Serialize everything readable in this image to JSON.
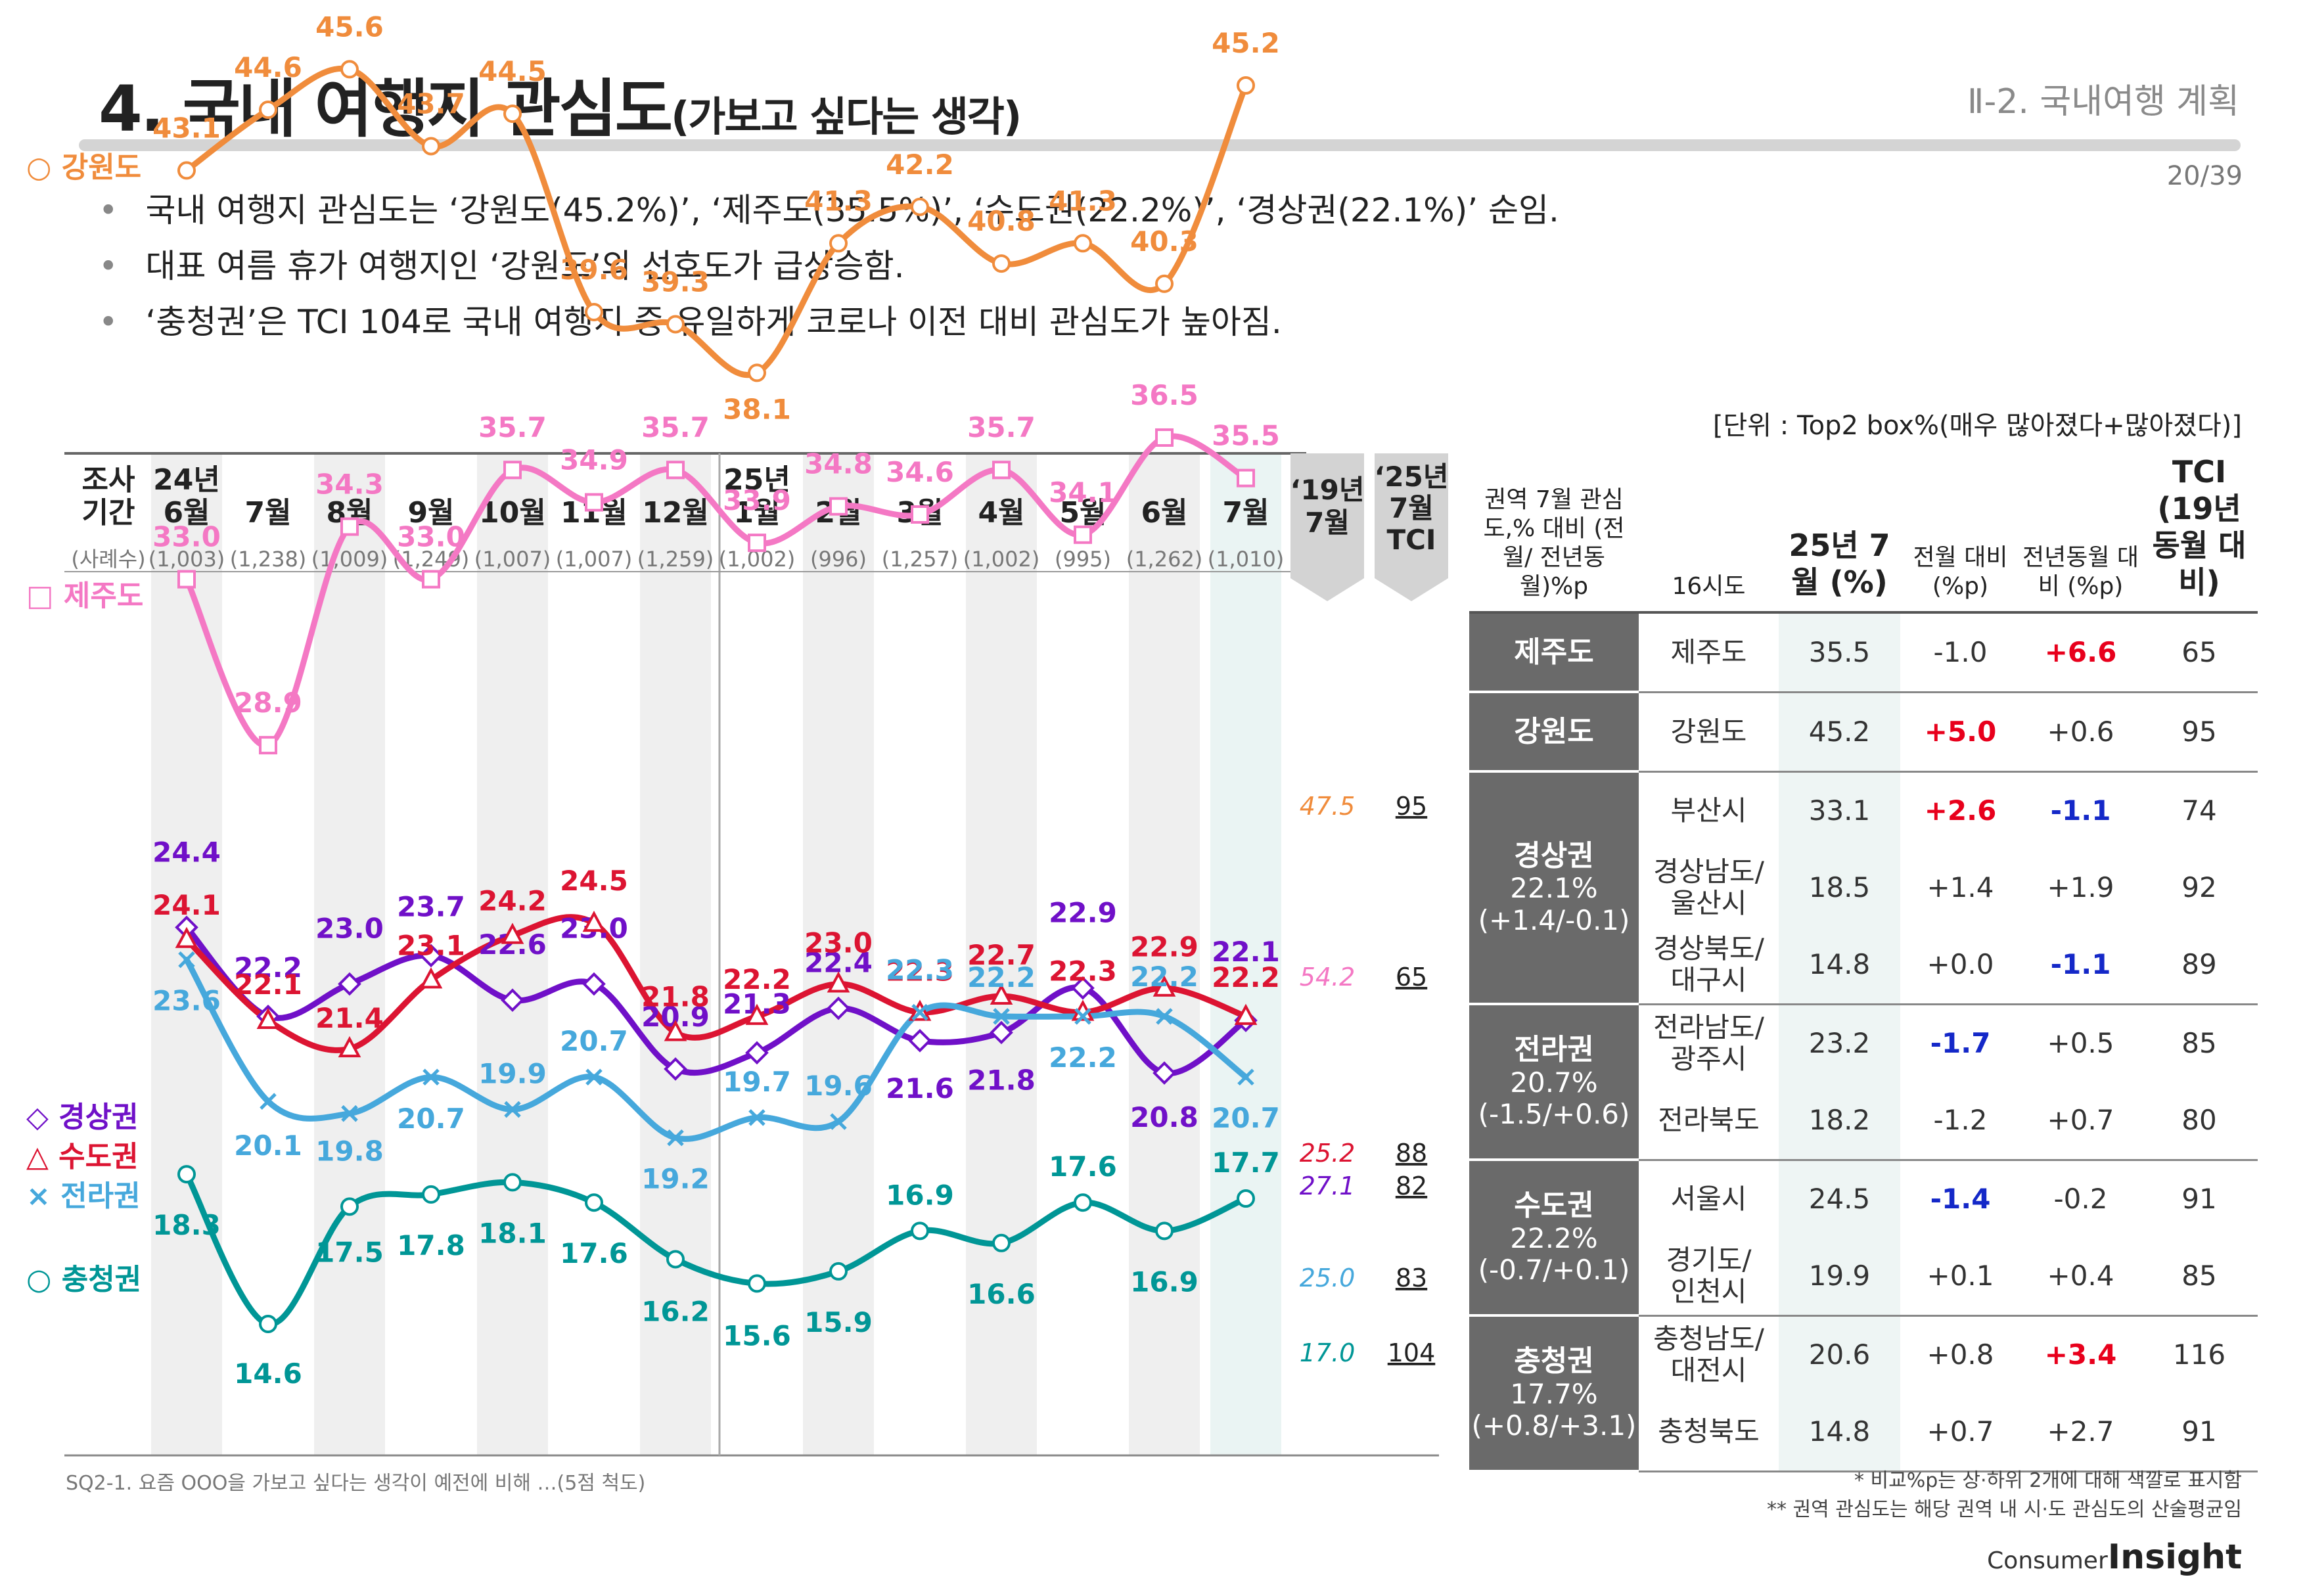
{
  "header": {
    "title": "4. 국내 여행지 관심도",
    "title_sub": "(가보고 싶다는 생각)",
    "section": "Ⅱ-2. 국내여행 계획",
    "page": "20/39"
  },
  "bullets": [
    "국내 여행지 관심도는 ‘강원도(45.2%)’, ‘제주도(35.5%)’, ‘수도권(22.2%)’, ‘경상권(22.1%)’ 순임.",
    "대표 여름 휴가 여행지인 ‘강원도’의 선호도가 급상승함.",
    "‘충청권’은 TCI 104로 국내 여행지 중 유일하게 코로나 이전 대비 관심도가 높아짐."
  ],
  "unit_note": "[단위 : Top2 box%(매우 많아졌다+많아졌다)]",
  "footnote_left": "SQ2-1. 요즘 OOO을 가보고 싶다는 생각이 예전에 비해 …(5점 척도)",
  "footnotes_right": [
    "* 비교%p는 상·하위 2개에 대해 색깔로 표시함",
    "** 권역 관심도는 해당 권역 내 시·도 관심도의 산술평균임"
  ],
  "logo": {
    "pre": "Consumer",
    "main": "Insight"
  },
  "chart_data": {
    "type": "line",
    "period_header": [
      "조사",
      "기간"
    ],
    "sample_header": "(사례수)",
    "categories": [
      [
        "24년",
        "6월"
      ],
      [
        "7월"
      ],
      [
        "8월"
      ],
      [
        "9월"
      ],
      [
        "10월"
      ],
      [
        "11월"
      ],
      [
        "12월"
      ],
      [
        "25년",
        "1월"
      ],
      [
        "2월"
      ],
      [
        "3월"
      ],
      [
        "4월"
      ],
      [
        "5월"
      ],
      [
        "6월"
      ],
      [
        "7월"
      ]
    ],
    "sample_sizes": [
      "(1,003)",
      "(1,238)",
      "(1,009)",
      "(1,249)",
      "(1,007)",
      "(1,007)",
      "(1,259)",
      "(1,002)",
      "(996)",
      "(1,257)",
      "(1,002)",
      "(995)",
      "(1,262)",
      "(1,010)"
    ],
    "extra_columns": {
      "y19": [
        "‘19년",
        "7월"
      ],
      "tci": [
        "‘25년",
        "7월",
        "TCI"
      ]
    },
    "ylim": [
      10,
      50
    ],
    "series": [
      {
        "name": "강원도",
        "marker": "circle",
        "legend": "○ 강원도",
        "color": "#f08c3c",
        "values": [
          43.1,
          44.6,
          45.6,
          43.7,
          44.5,
          39.6,
          39.3,
          38.1,
          41.3,
          42.2,
          40.8,
          41.3,
          40.3,
          45.2
        ],
        "labels": [
          "43.1",
          "44.6",
          "45.6",
          "43.7",
          "44.5",
          "39.6",
          "39.3",
          "38.1",
          "41.3",
          "42.2",
          "40.8",
          "41.3",
          "40.3",
          "45.2"
        ],
        "y2019": "47.5",
        "tci": "95"
      },
      {
        "name": "제주도",
        "marker": "square",
        "legend": "□ 제주도",
        "color": "#f478c4",
        "values": [
          33.0,
          28.9,
          34.3,
          33.0,
          35.7,
          34.9,
          35.7,
          33.9,
          34.8,
          34.6,
          35.7,
          34.1,
          36.5,
          35.5
        ],
        "labels": [
          "33.0",
          "28.9",
          "34.3",
          "33.0",
          "35.7",
          "34.9",
          "35.7",
          "33.9",
          "34.8",
          "34.6",
          "35.7",
          "34.1",
          "36.5",
          "35.5"
        ],
        "y2019": "54.2",
        "tci": "65"
      },
      {
        "name": "경상권",
        "marker": "diamond",
        "legend": "◇ 경상권",
        "color": "#7010c8",
        "values": [
          24.4,
          22.2,
          23.0,
          23.7,
          22.6,
          23.0,
          20.9,
          21.3,
          22.4,
          21.6,
          21.8,
          22.9,
          20.8,
          22.1
        ],
        "labels": [
          "24.4",
          "22.2",
          "23.0",
          "23.7",
          "22.6",
          "23.0",
          "20.9",
          "21.3",
          "22.4",
          "21.6",
          "21.8",
          "22.9",
          "20.8",
          "22.1"
        ],
        "y2019": "27.1",
        "tci": "82"
      },
      {
        "name": "수도권",
        "marker": "triangle",
        "legend": "△ 수도권",
        "color": "#dc1432",
        "values": [
          24.1,
          22.1,
          21.4,
          23.1,
          24.2,
          24.5,
          21.8,
          22.2,
          23.0,
          22.3,
          22.7,
          22.3,
          22.9,
          22.2
        ],
        "labels": [
          "24.1",
          "22.1",
          "21.4",
          "23.1",
          "24.2",
          "24.5",
          "21.8",
          "22.2",
          "23.0",
          "22.3",
          "22.7",
          "22.3",
          "22.9",
          "22.2"
        ],
        "y2019": "25.2",
        "tci": "88"
      },
      {
        "name": "전라권",
        "marker": "x",
        "legend": "× 전라권",
        "color": "#46a8dc",
        "values": [
          23.6,
          20.1,
          19.8,
          20.7,
          19.9,
          20.7,
          19.2,
          19.7,
          19.6,
          22.3,
          22.2,
          22.2,
          22.2,
          20.7
        ],
        "labels": [
          "23.6",
          "20.1",
          "19.8",
          "20.7",
          "19.9",
          "20.7",
          "19.2",
          "19.7",
          "19.6",
          "22.3",
          "22.2",
          "22.2",
          "22.2",
          "20.7"
        ],
        "y2019": "25.0",
        "tci": "83"
      },
      {
        "name": "충청권",
        "marker": "circle",
        "legend": "○ 충청권",
        "color": "#009696",
        "values": [
          18.3,
          14.6,
          17.5,
          17.8,
          18.1,
          17.6,
          16.2,
          15.6,
          15.9,
          16.9,
          16.6,
          17.6,
          16.9,
          17.7
        ],
        "labels": [
          "18.3",
          "14.6",
          "17.5",
          "17.8",
          "18.1",
          "17.6",
          "16.2",
          "15.6",
          "15.9",
          "16.9",
          "16.6",
          "17.6",
          "16.9",
          "17.7"
        ],
        "y2019": "17.0",
        "tci": "104"
      }
    ]
  },
  "table": {
    "headers": {
      "region": "권역 7월 관심도,% 대비 (전월/ 전년동월)%p",
      "city": "16시도",
      "cur": "25년 7월 (%)",
      "mom": "전월 대비 (%p)",
      "yoy": "전년동월 대비 (%p)",
      "tci": "TCI (19년 동월 대비)"
    },
    "groups": [
      {
        "region": "제주도",
        "rows": [
          {
            "city": "제주도",
            "cur": "35.5",
            "mom": "-1.0",
            "yoy": "+6.6",
            "tci": "65",
            "mom_hl": "",
            "yoy_hl": "pos"
          }
        ]
      },
      {
        "region": "강원도",
        "rows": [
          {
            "city": "강원도",
            "cur": "45.2",
            "mom": "+5.0",
            "yoy": "+0.6",
            "tci": "95",
            "mom_hl": "pos",
            "yoy_hl": ""
          }
        ]
      },
      {
        "region": "경상권",
        "region_value": "22.1%",
        "region_delta": "(+1.4/-0.1)",
        "rows": [
          {
            "city": "부산시",
            "cur": "33.1",
            "mom": "+2.6",
            "yoy": "-1.1",
            "tci": "74",
            "mom_hl": "pos",
            "yoy_hl": "neg"
          },
          {
            "city": "경상남도/ 울산시",
            "cur": "18.5",
            "mom": "+1.4",
            "yoy": "+1.9",
            "tci": "92",
            "mom_hl": "",
            "yoy_hl": ""
          },
          {
            "city": "경상북도/ 대구시",
            "cur": "14.8",
            "mom": "+0.0",
            "yoy": "-1.1",
            "tci": "89",
            "mom_hl": "",
            "yoy_hl": "neg"
          }
        ]
      },
      {
        "region": "전라권",
        "region_value": "20.7%",
        "region_delta": "(-1.5/+0.6)",
        "rows": [
          {
            "city": "전라남도/ 광주시",
            "cur": "23.2",
            "mom": "-1.7",
            "yoy": "+0.5",
            "tci": "85",
            "mom_hl": "neg",
            "yoy_hl": ""
          },
          {
            "city": "전라북도",
            "cur": "18.2",
            "mom": "-1.2",
            "yoy": "+0.7",
            "tci": "80",
            "mom_hl": "",
            "yoy_hl": ""
          }
        ]
      },
      {
        "region": "수도권",
        "region_value": "22.2%",
        "region_delta": "(-0.7/+0.1)",
        "rows": [
          {
            "city": "서울시",
            "cur": "24.5",
            "mom": "-1.4",
            "yoy": "-0.2",
            "tci": "91",
            "mom_hl": "neg",
            "yoy_hl": ""
          },
          {
            "city": "경기도/ 인천시",
            "cur": "19.9",
            "mom": "+0.1",
            "yoy": "+0.4",
            "tci": "85",
            "mom_hl": "",
            "yoy_hl": ""
          }
        ]
      },
      {
        "region": "충청권",
        "region_value": "17.7%",
        "region_delta": "(+0.8/+3.1)",
        "rows": [
          {
            "city": "충청남도/ 대전시",
            "cur": "20.6",
            "mom": "+0.8",
            "yoy": "+3.4",
            "tci": "116",
            "mom_hl": "",
            "yoy_hl": "pos"
          },
          {
            "city": "충청북도",
            "cur": "14.8",
            "mom": "+0.7",
            "yoy": "+2.7",
            "tci": "91",
            "mom_hl": "",
            "yoy_hl": ""
          }
        ]
      }
    ]
  }
}
